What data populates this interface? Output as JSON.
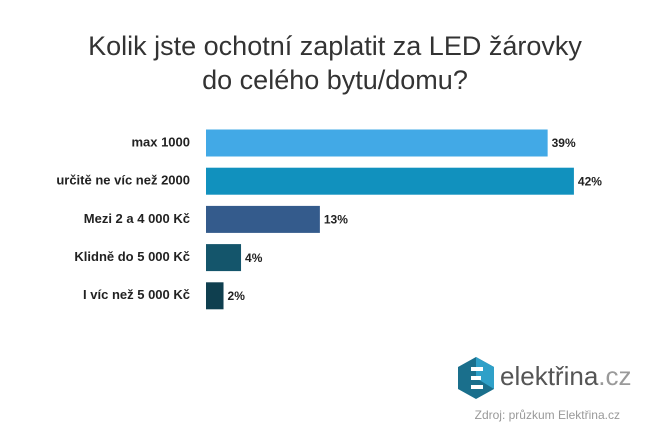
{
  "chart_data": {
    "type": "bar",
    "orientation": "horizontal",
    "title": [
      "Kolik jste ochotní zaplatit za LED žárovky",
      "do celého bytu/domu?"
    ],
    "categories": [
      "max 1000",
      "určitě ne víc než 2000",
      "Mezi 2 a 4 000 Kč",
      "Klidně do 5 000 Kč",
      "I víc než 5 000 Kč"
    ],
    "values": [
      39,
      42,
      13,
      4,
      2
    ],
    "value_labels": [
      "39%",
      "42%",
      "13%",
      "4%",
      "2%"
    ],
    "colors": [
      "#42a9e6",
      "#1191be",
      "#345b8c",
      "#14556b",
      "#0f3f4f"
    ],
    "logo_name": "elektřina",
    "logo_domain": ".cz",
    "source": "Zdroj: průzkum Elektřina.cz"
  }
}
